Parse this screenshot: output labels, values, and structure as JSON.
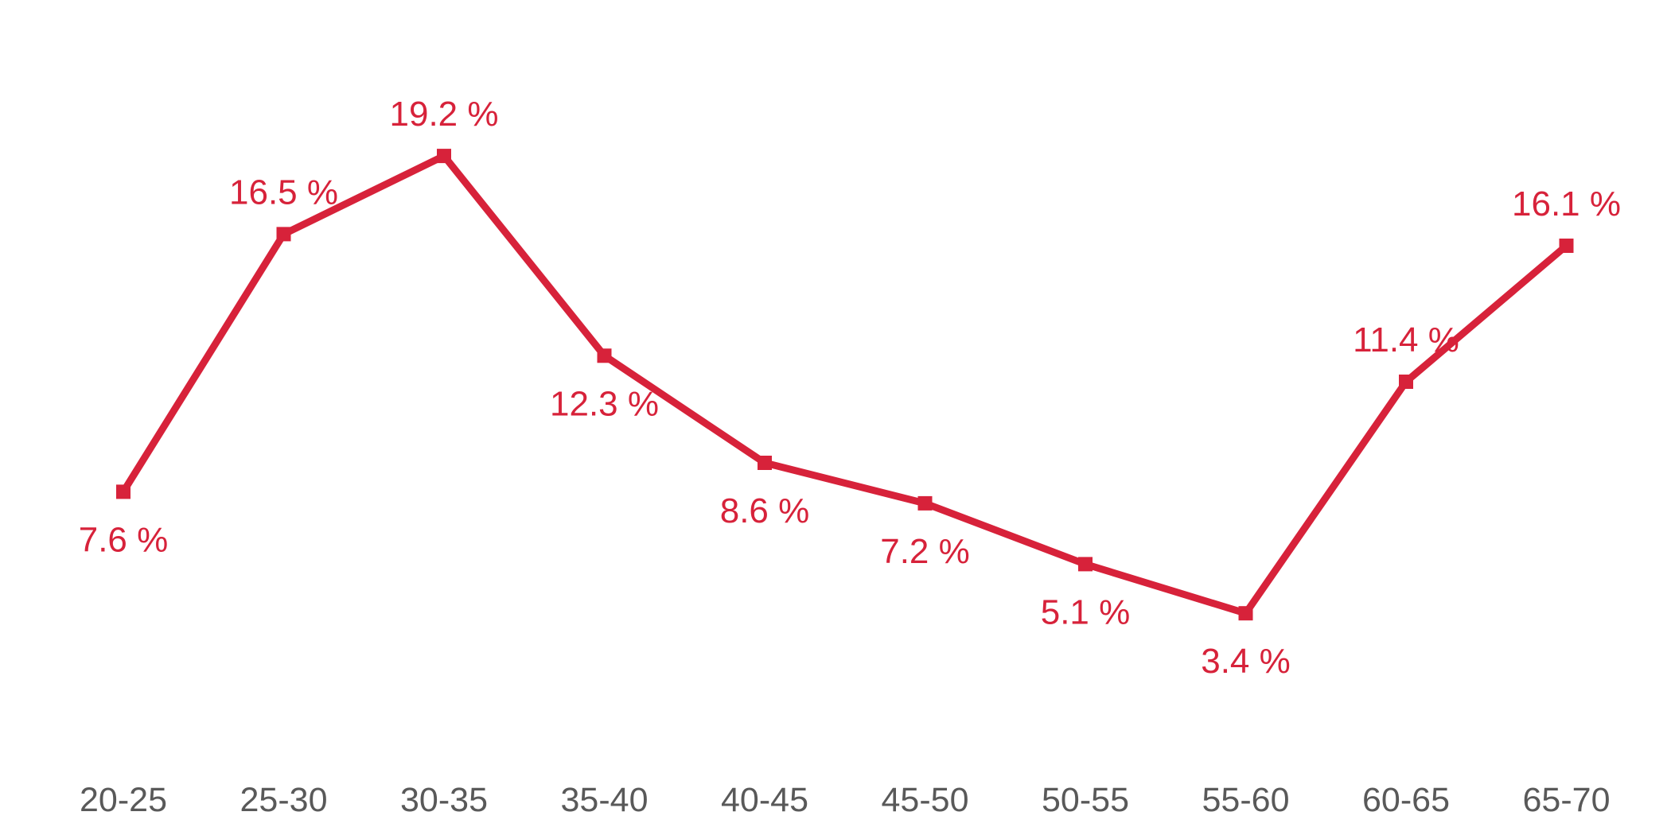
{
  "chart_data": {
    "type": "line",
    "title": "",
    "xlabel": "",
    "ylabel": "",
    "categories": [
      "20-25",
      "25-30",
      "30-35",
      "35-40",
      "40-45",
      "45-50",
      "50-55",
      "55-60",
      "60-65",
      "65-70"
    ],
    "values": [
      7.6,
      16.5,
      19.2,
      12.3,
      8.6,
      7.2,
      5.1,
      3.4,
      11.4,
      16.1
    ],
    "data_labels": [
      "7.6 %",
      "16.5 %",
      "19.2 %",
      "12.3 %",
      "8.6 %",
      "7.2 %",
      "5.1 %",
      "3.4 %",
      "11.4 %",
      "16.1 %"
    ],
    "label_positions": [
      "below",
      "above",
      "above",
      "below",
      "below",
      "below",
      "below",
      "below",
      "above",
      "above"
    ],
    "marker": "square",
    "grid": false,
    "legend": "none",
    "colors": {
      "series": "#d7223a",
      "tick_text": "#595959",
      "background": "#ffffff"
    }
  }
}
